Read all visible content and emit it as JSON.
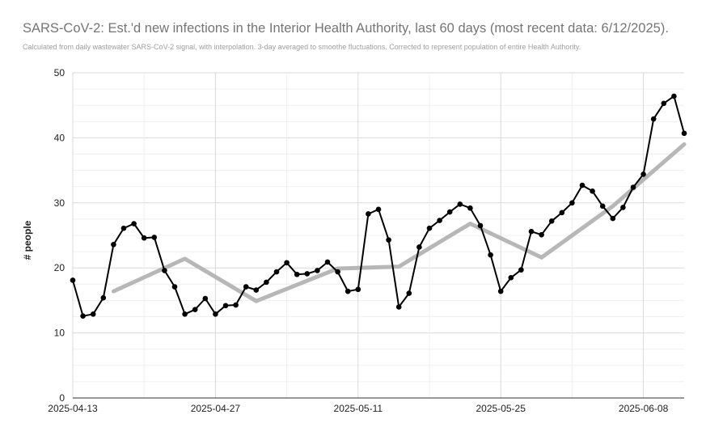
{
  "chart_data": {
    "type": "line",
    "title": "SARS-CoV-2: Est.'d new infections in the Interior Health Authority, last 60 days (most recent data: 6/12/2025).",
    "subtitle": "Calculated from daily wastewater SARS-CoV-2 signal, with interpolation. 3-day averaged to smoothe fluctuations. Corrected to represent population of entire Health Authority.",
    "xlabel": "",
    "ylabel": "# people",
    "ylim": [
      0,
      50
    ],
    "yticks": [
      0,
      10,
      20,
      30,
      40,
      50
    ],
    "xlim": [
      "2025-04-13",
      "2025-06-12"
    ],
    "xtick_labels": [
      "2025-04-13",
      "2025-04-27",
      "2025-05-11",
      "2025-05-25",
      "2025-06-08"
    ],
    "grid": true,
    "legend": "none",
    "series": [
      {
        "color": "#000000",
        "markers": true,
        "points": [
          [
            "2025-04-13",
            18.1
          ],
          [
            "2025-04-14",
            12.6
          ],
          [
            "2025-04-15",
            12.9
          ],
          [
            "2025-04-16",
            15.4
          ],
          [
            "2025-04-17",
            23.6
          ],
          [
            "2025-04-18",
            26.1
          ],
          [
            "2025-04-19",
            26.8
          ],
          [
            "2025-04-20",
            24.6
          ],
          [
            "2025-04-21",
            24.7
          ],
          [
            "2025-04-22",
            19.6
          ],
          [
            "2025-04-23",
            17.1
          ],
          [
            "2025-04-24",
            12.9
          ],
          [
            "2025-04-25",
            13.6
          ],
          [
            "2025-04-26",
            15.3
          ],
          [
            "2025-04-27",
            12.9
          ],
          [
            "2025-04-28",
            14.2
          ],
          [
            "2025-04-29",
            14.3
          ],
          [
            "2025-04-30",
            17.1
          ],
          [
            "2025-05-01",
            16.6
          ],
          [
            "2025-05-02",
            17.8
          ],
          [
            "2025-05-03",
            19.4
          ],
          [
            "2025-05-04",
            20.8
          ],
          [
            "2025-05-05",
            19.0
          ],
          [
            "2025-05-06",
            19.1
          ],
          [
            "2025-05-07",
            19.6
          ],
          [
            "2025-05-08",
            20.9
          ],
          [
            "2025-05-09",
            19.4
          ],
          [
            "2025-05-10",
            16.4
          ],
          [
            "2025-05-11",
            16.7
          ],
          [
            "2025-05-12",
            28.3
          ],
          [
            "2025-05-13",
            29.0
          ],
          [
            "2025-05-14",
            24.3
          ],
          [
            "2025-05-15",
            14.0
          ],
          [
            "2025-05-16",
            16.1
          ],
          [
            "2025-05-17",
            23.2
          ],
          [
            "2025-05-18",
            26.1
          ],
          [
            "2025-05-19",
            27.3
          ],
          [
            "2025-05-20",
            28.6
          ],
          [
            "2025-05-21",
            29.8
          ],
          [
            "2025-05-22",
            29.2
          ],
          [
            "2025-05-23",
            26.5
          ],
          [
            "2025-05-24",
            22.0
          ],
          [
            "2025-05-25",
            16.4
          ],
          [
            "2025-05-26",
            18.5
          ],
          [
            "2025-05-27",
            19.7
          ],
          [
            "2025-05-28",
            25.6
          ],
          [
            "2025-05-29",
            25.1
          ],
          [
            "2025-05-30",
            27.2
          ],
          [
            "2025-05-31",
            28.5
          ],
          [
            "2025-06-01",
            30.0
          ],
          [
            "2025-06-02",
            32.7
          ],
          [
            "2025-06-03",
            31.8
          ],
          [
            "2025-06-04",
            29.5
          ],
          [
            "2025-06-05",
            27.6
          ],
          [
            "2025-06-06",
            29.3
          ],
          [
            "2025-06-07",
            32.4
          ],
          [
            "2025-06-08",
            34.4
          ],
          [
            "2025-06-09",
            42.9
          ],
          [
            "2025-06-10",
            45.3
          ],
          [
            "2025-06-11",
            46.4
          ],
          [
            "2025-06-12",
            40.7
          ]
        ]
      },
      {
        "color": "#b7b7b7",
        "markers": false,
        "points": [
          [
            "2025-04-17",
            16.4
          ],
          [
            "2025-04-24",
            21.4
          ],
          [
            "2025-05-01",
            14.9
          ],
          [
            "2025-05-09",
            19.9
          ],
          [
            "2025-05-15",
            20.2
          ],
          [
            "2025-05-22",
            26.8
          ],
          [
            "2025-05-29",
            21.6
          ],
          [
            "2025-06-05",
            29.5
          ],
          [
            "2025-06-12",
            39.0
          ]
        ]
      }
    ]
  }
}
